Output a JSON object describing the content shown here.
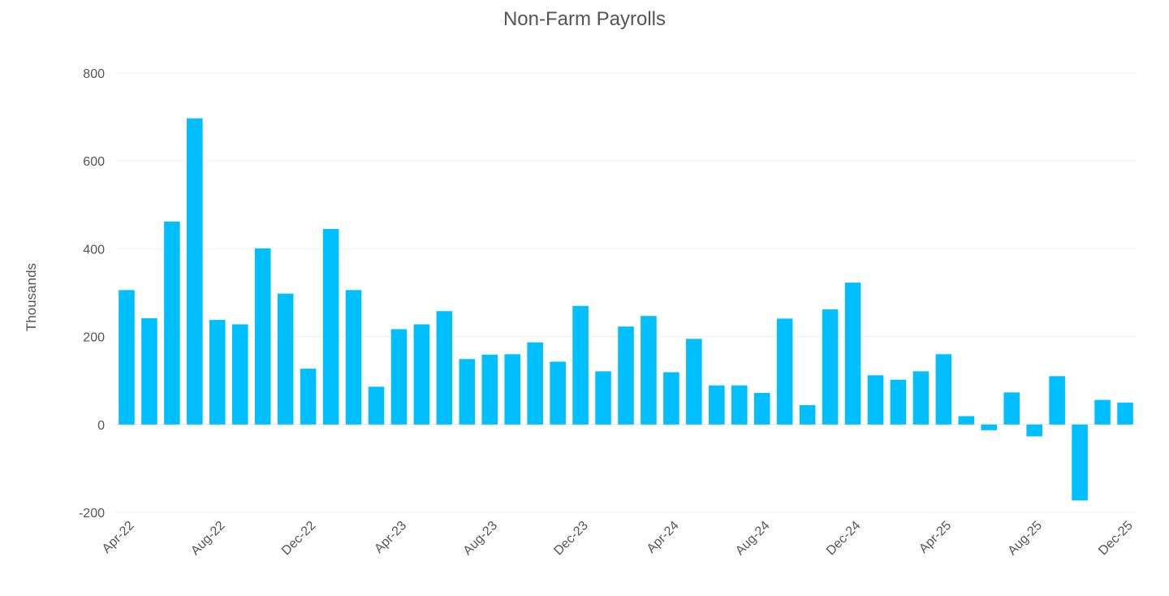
{
  "chart_data": {
    "type": "bar",
    "title": "Non-Farm Payrolls",
    "xlabel": "",
    "ylabel": "Thousands",
    "ylim": [
      -200,
      800
    ],
    "yticks": [
      -200,
      0,
      200,
      400,
      600,
      800
    ],
    "grid": true,
    "legend": "none",
    "bar_color": "#00bfff",
    "categories": [
      "Apr-22",
      "May-22",
      "Jun-22",
      "Jul-22",
      "Aug-22",
      "Sep-22",
      "Oct-22",
      "Nov-22",
      "Dec-22",
      "Jan-23",
      "Feb-23",
      "Mar-23",
      "Apr-23",
      "May-23",
      "Jun-23",
      "Jul-23",
      "Aug-23",
      "Sep-23",
      "Oct-23",
      "Nov-23",
      "Dec-23",
      "Jan-24",
      "Feb-24",
      "Mar-24",
      "Apr-24",
      "May-24",
      "Jun-24",
      "Jul-24",
      "Aug-24",
      "Sep-24",
      "Oct-24",
      "Nov-24",
      "Dec-24",
      "Jan-25",
      "Feb-25",
      "Mar-25",
      "Apr-25",
      "May-25",
      "Jun-25",
      "Jul-25",
      "Aug-25",
      "Sep-25",
      "Oct-25",
      "Nov-25",
      "Dec-25"
    ],
    "xtick_labels": [
      "Apr-22",
      "Aug-22",
      "Dec-22",
      "Apr-23",
      "Aug-23",
      "Dec-23",
      "Apr-24",
      "Aug-24",
      "Dec-24",
      "Apr-25",
      "Aug-25",
      "Dec-25"
    ],
    "values": [
      306,
      242,
      462,
      697,
      238,
      228,
      401,
      298,
      127,
      445,
      306,
      86,
      217,
      228,
      258,
      149,
      159,
      160,
      187,
      143,
      270,
      121,
      223,
      247,
      119,
      195,
      89,
      89,
      72,
      241,
      44,
      262,
      323,
      112,
      102,
      121,
      160,
      19,
      -13,
      73,
      -27,
      110,
      -173,
      56,
      50
    ]
  }
}
